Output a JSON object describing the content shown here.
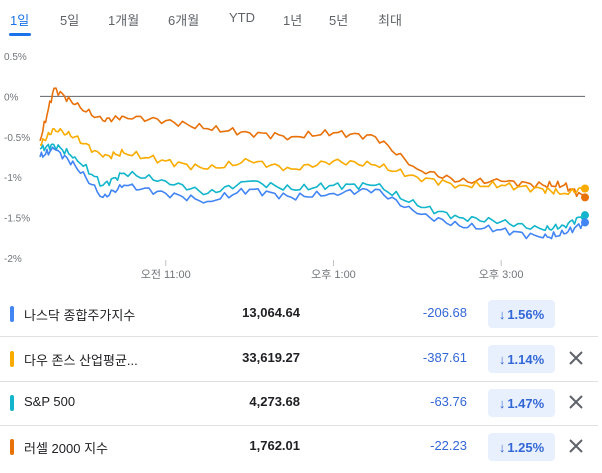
{
  "tabs": [
    {
      "label": "1일",
      "active": true
    },
    {
      "label": "5일",
      "active": false
    },
    {
      "label": "1개월",
      "active": false
    },
    {
      "label": "6개월",
      "active": false
    },
    {
      "label": "YTD",
      "active": false
    },
    {
      "label": "1년",
      "active": false
    },
    {
      "label": "5년",
      "active": false
    },
    {
      "label": "최대",
      "active": false
    }
  ],
  "chart_data": {
    "type": "line",
    "y_ticks": [
      "0.5%",
      "0%",
      "-0.5%",
      "-1%",
      "-1.5%",
      "-2%"
    ],
    "x_ticks": [
      "오전 11:00",
      "오후 1:00",
      "오후 3:00"
    ],
    "ylim": [
      -2,
      0.5
    ],
    "grid": "horizontal",
    "series": [
      {
        "name": "러셀 2000 지수",
        "color": "#e8710a",
        "x": [
          "09:30",
          "09:40",
          "09:55",
          "10:15",
          "10:30",
          "11:00",
          "11:30",
          "12:00",
          "12:30",
          "13:00",
          "13:30",
          "14:00",
          "14:30",
          "15:00",
          "15:30",
          "15:45",
          "16:00"
        ],
        "values": [
          -0.55,
          0.1,
          -0.1,
          -0.3,
          -0.25,
          -0.3,
          -0.4,
          -0.45,
          -0.5,
          -0.45,
          -0.5,
          -0.9,
          -1.05,
          -1.05,
          -1.1,
          -1.1,
          -1.25
        ]
      },
      {
        "name": "다우 존스 산업평균지수",
        "color": "#f9ab00",
        "x": [
          "09:30",
          "09:40",
          "09:55",
          "10:15",
          "10:30",
          "11:00",
          "11:30",
          "12:00",
          "12:30",
          "13:00",
          "13:30",
          "14:00",
          "14:30",
          "15:00",
          "15:30",
          "15:45",
          "16:00"
        ],
        "values": [
          -0.6,
          -0.4,
          -0.5,
          -0.75,
          -0.7,
          -0.8,
          -0.9,
          -0.8,
          -0.9,
          -0.8,
          -0.85,
          -1.0,
          -1.1,
          -1.1,
          -1.15,
          -1.2,
          -1.14
        ]
      },
      {
        "name": "S&P 500",
        "color": "#12b5cb",
        "x": [
          "09:30",
          "09:40",
          "09:55",
          "10:15",
          "10:30",
          "11:00",
          "11:30",
          "12:00",
          "12:30",
          "13:00",
          "13:30",
          "14:00",
          "14:30",
          "15:00",
          "15:30",
          "15:45",
          "16:00"
        ],
        "values": [
          -0.65,
          -0.6,
          -0.75,
          -1.1,
          -0.95,
          -1.05,
          -1.2,
          -1.05,
          -1.15,
          -1.1,
          -1.1,
          -1.35,
          -1.5,
          -1.55,
          -1.65,
          -1.6,
          -1.47
        ]
      },
      {
        "name": "나스닥 종합주가지수",
        "color": "#4285f4",
        "x": [
          "09:30",
          "09:40",
          "09:55",
          "10:15",
          "10:30",
          "11:00",
          "11:30",
          "12:00",
          "12:30",
          "13:00",
          "13:30",
          "14:00",
          "14:30",
          "15:00",
          "15:30",
          "15:45",
          "16:00"
        ],
        "values": [
          -0.75,
          -0.65,
          -0.85,
          -1.25,
          -1.1,
          -1.2,
          -1.3,
          -1.15,
          -1.25,
          -1.2,
          -1.15,
          -1.45,
          -1.6,
          -1.65,
          -1.75,
          -1.7,
          -1.56
        ]
      }
    ]
  },
  "indices": [
    {
      "name": "나스닥 종합주가지수",
      "value": "13,064.64",
      "change": "-206.68",
      "pct": "1.56%",
      "color": "#4285f4",
      "removable": false
    },
    {
      "name": "다우 존스 산업평균...",
      "value": "33,619.27",
      "change": "-387.61",
      "pct": "1.14%",
      "color": "#f9ab00",
      "removable": true
    },
    {
      "name": "S&P 500",
      "value": "4,273.68",
      "change": "-63.76",
      "pct": "1.47%",
      "color": "#12b5cb",
      "removable": true
    },
    {
      "name": "러셀 2000 지수",
      "value": "1,762.01",
      "change": "-22.23",
      "pct": "1.25%",
      "color": "#e8710a",
      "removable": true
    }
  ],
  "icons": {
    "down": "arrow-down-icon",
    "close": "close-icon"
  }
}
